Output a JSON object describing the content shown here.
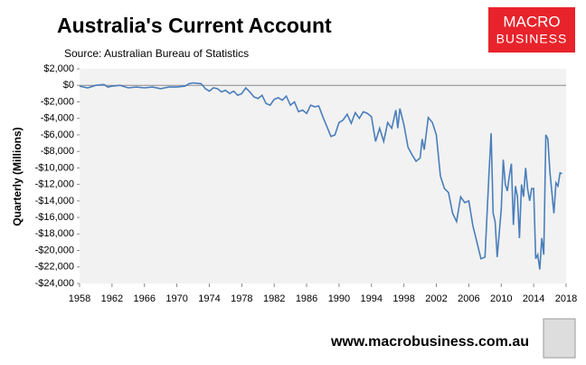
{
  "chart_data": {
    "type": "line",
    "title": "Australia's Current Account",
    "subtitle": "Source: Australian Bureau of Statistics",
    "y_label": "Quarterly (Millions)",
    "logo": [
      "MACRO",
      "BUSINESS"
    ],
    "website": "www.macrobusiness.com.au",
    "xlim": [
      1958,
      2018
    ],
    "xticks": [
      1958,
      1962,
      1966,
      1970,
      1974,
      1978,
      1982,
      1986,
      1990,
      1994,
      1998,
      2002,
      2006,
      2010,
      2014,
      2018
    ],
    "ylim": [
      -24000,
      2000
    ],
    "yticks": [
      {
        "value": 2000,
        "label": "$2,000"
      },
      {
        "value": 0,
        "label": "$0"
      },
      {
        "value": -2000,
        "label": "-$2,000"
      },
      {
        "value": -4000,
        "label": "-$4,000"
      },
      {
        "value": -6000,
        "label": "-$6,000"
      },
      {
        "value": -8000,
        "label": "-$8,000"
      },
      {
        "value": -10000,
        "label": "-$10,000"
      },
      {
        "value": -12000,
        "label": "-$12,000"
      },
      {
        "value": -14000,
        "label": "-$14,000"
      },
      {
        "value": -16000,
        "label": "-$16,000"
      },
      {
        "value": -18000,
        "label": "-$18,000"
      },
      {
        "value": -20000,
        "label": "-$20,000"
      },
      {
        "value": -22000,
        "label": "-$22,000"
      },
      {
        "value": -24000,
        "label": "-$24,000"
      }
    ],
    "color": "#4a7ebb",
    "x": [
      1958,
      1959,
      1960,
      1961,
      1961.5,
      1962,
      1963,
      1964,
      1965,
      1966,
      1967,
      1968,
      1969,
      1970,
      1971,
      1971.5,
      1972,
      1973,
      1973.5,
      1974,
      1974.5,
      1975,
      1975.5,
      1976,
      1976.5,
      1977,
      1977.5,
      1978,
      1978.5,
      1979,
      1979.5,
      1980,
      1980.5,
      1981,
      1981.5,
      1982,
      1982.5,
      1983,
      1983.5,
      1984,
      1984.5,
      1985,
      1985.5,
      1986,
      1986.5,
      1987,
      1987.5,
      1988,
      1988.5,
      1989,
      1989.5,
      1990,
      1990.5,
      1991,
      1991.5,
      1992,
      1992.5,
      1993,
      1993.5,
      1994,
      1994.5,
      1995,
      1995.5,
      1996,
      1996.5,
      1997,
      1997.25,
      1997.5,
      1998,
      1998.5,
      1999,
      1999.5,
      2000,
      2000.25,
      2000.5,
      2001,
      2001.5,
      2002,
      2002.5,
      2003,
      2003.5,
      2004,
      2004.5,
      2005,
      2005.5,
      2006,
      2006.5,
      2007,
      2007.5,
      2008,
      2008.5,
      2008.75,
      2009,
      2009.25,
      2009.5,
      2010,
      2010.25,
      2010.5,
      2010.75,
      2011,
      2011.25,
      2011.5,
      2011.75,
      2012,
      2012.25,
      2012.5,
      2012.75,
      2013,
      2013.25,
      2013.5,
      2013.75,
      2014,
      2014.25,
      2014.5,
      2014.75,
      2015,
      2015.25,
      2015.5,
      2015.75,
      2016,
      2016.5,
      2016.75,
      2017,
      2017.25,
      2017.5
    ],
    "values": [
      -100,
      -300,
      0,
      100,
      -200,
      -100,
      0,
      -300,
      -200,
      -300,
      -200,
      -400,
      -200,
      -200,
      -100,
      200,
      300,
      200,
      -400,
      -700,
      -300,
      -400,
      -800,
      -600,
      -1000,
      -700,
      -1200,
      -1000,
      -300,
      -800,
      -1400,
      -1600,
      -1200,
      -2200,
      -2400,
      -1700,
      -1500,
      -1800,
      -1300,
      -2400,
      -2000,
      -3200,
      -3000,
      -3400,
      -2400,
      -2600,
      -2500,
      -3800,
      -5000,
      -6200,
      -6000,
      -4500,
      -4200,
      -3500,
      -4600,
      -3300,
      -4000,
      -3200,
      -3400,
      -3800,
      -6800,
      -5200,
      -6800,
      -4500,
      -5200,
      -3000,
      -5200,
      -2800,
      -4800,
      -7500,
      -8400,
      -9200,
      -8800,
      -6500,
      -7800,
      -3900,
      -4500,
      -6000,
      -11000,
      -12500,
      -13000,
      -15500,
      -16500,
      -13500,
      -14200,
      -14000,
      -17000,
      -19000,
      -21000,
      -20800,
      -10500,
      -5800,
      -15500,
      -16500,
      -20800,
      -15000,
      -9000,
      -12000,
      -12800,
      -11000,
      -9500,
      -16900,
      -12200,
      -13500,
      -18500,
      -12000,
      -13500,
      -10000,
      -12500,
      -14000,
      -12500,
      -12500,
      -21000,
      -20500,
      -22300,
      -18500,
      -20500,
      -6000,
      -6500,
      -10500,
      -15500,
      -11800,
      -12200,
      -10600,
      -10700
    ]
  }
}
